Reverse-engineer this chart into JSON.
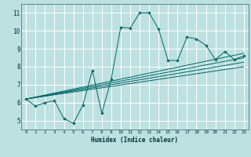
{
  "xlabel": "Humidex (Indice chaleur)",
  "bg_color": "#bde0e0",
  "grid_color": "#ffffff",
  "line_color": "#006666",
  "xlim": [
    -0.5,
    23.5
  ],
  "ylim": [
    4.5,
    11.5
  ],
  "xticks": [
    0,
    1,
    2,
    3,
    4,
    5,
    6,
    7,
    8,
    9,
    10,
    11,
    12,
    13,
    14,
    15,
    16,
    17,
    18,
    19,
    20,
    21,
    22,
    23
  ],
  "yticks": [
    5,
    6,
    7,
    8,
    9,
    10,
    11
  ],
  "main_series_x": [
    0,
    1,
    2,
    3,
    4,
    5,
    6,
    7,
    8,
    9,
    10,
    11,
    12,
    13,
    14,
    15,
    16,
    17,
    18,
    19,
    20,
    21,
    22,
    23
  ],
  "main_series_y": [
    6.2,
    5.8,
    6.0,
    6.1,
    5.1,
    4.85,
    5.85,
    7.8,
    5.4,
    7.3,
    10.2,
    10.15,
    11.0,
    11.0,
    10.1,
    8.35,
    8.35,
    9.65,
    9.55,
    9.2,
    8.4,
    8.85,
    8.4,
    8.6
  ],
  "trend_lines": [
    {
      "x0": 0,
      "y0": 6.2,
      "x1": 23,
      "y1": 8.75
    },
    {
      "x0": 0,
      "y0": 6.2,
      "x1": 23,
      "y1": 8.5
    },
    {
      "x0": 0,
      "y0": 6.2,
      "x1": 23,
      "y1": 8.25
    },
    {
      "x0": 0,
      "y0": 6.2,
      "x1": 23,
      "y1": 8.0
    }
  ]
}
